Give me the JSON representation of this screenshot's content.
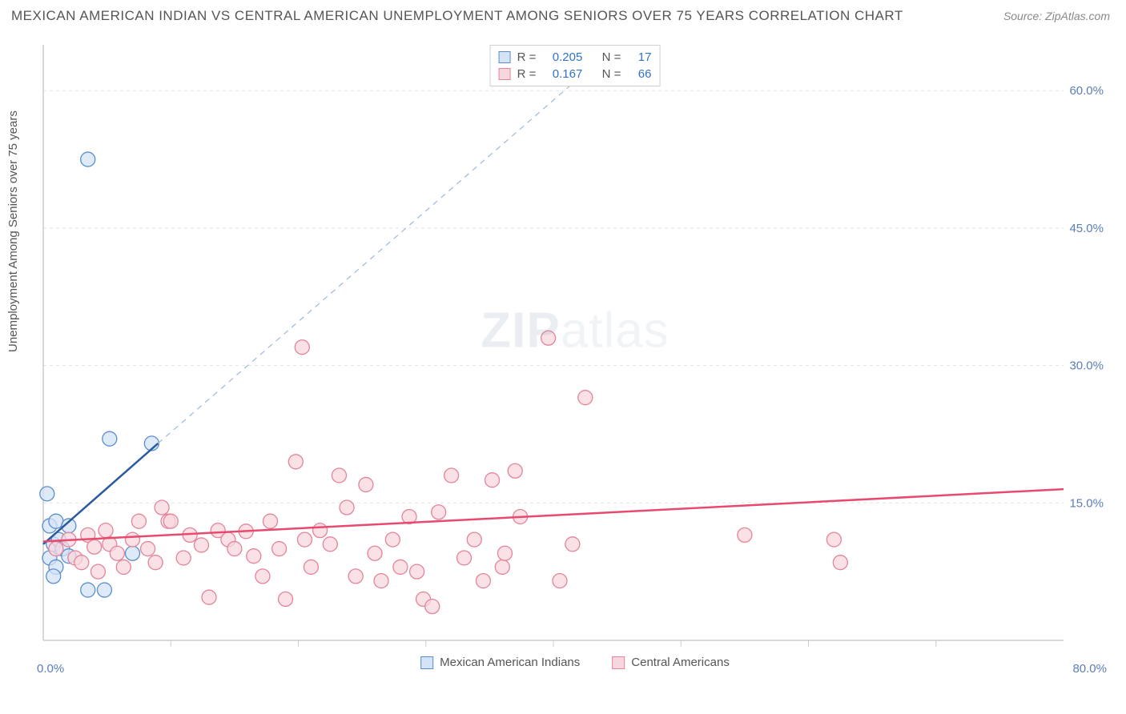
{
  "title": "MEXICAN AMERICAN INDIAN VS CENTRAL AMERICAN UNEMPLOYMENT AMONG SENIORS OVER 75 YEARS CORRELATION CHART",
  "source": "Source: ZipAtlas.com",
  "ylabel": "Unemployment Among Seniors over 75 years",
  "watermark_zip": "ZIP",
  "watermark_atlas": "atlas",
  "chart": {
    "type": "scatter",
    "background_color": "#ffffff",
    "grid_color": "#e5e5e5",
    "grid_dash": "4,4",
    "axis_color": "#cccccc",
    "xlim": [
      0,
      80
    ],
    "ylim": [
      0,
      65
    ],
    "x_origin_label": "0.0%",
    "x_max_label": "80.0%",
    "y_ticks": [
      15,
      30,
      45,
      60
    ],
    "y_tick_labels": [
      "15.0%",
      "30.0%",
      "45.0%",
      "60.0%"
    ],
    "x_minor_step": 10,
    "tick_label_color": "#5a7db8",
    "tick_label_fontsize": 15,
    "stats_box": {
      "border_color": "#d0d0d0",
      "label_color": "#555555",
      "value_color": "#3273c4",
      "rows": [
        {
          "swatch_fill": "#d4e3f6",
          "swatch_stroke": "#5a8dd0",
          "r": "0.205",
          "n": "17"
        },
        {
          "swatch_fill": "#f7d7de",
          "swatch_stroke": "#e3849a",
          "r": "0.167",
          "n": "66"
        }
      ]
    },
    "series": [
      {
        "name": "Mexican American Indians",
        "marker_fill": "#d4e3f6",
        "marker_stroke": "#5a8dd0",
        "marker_opacity": 0.75,
        "marker_radius": 9,
        "trend": {
          "x1": 0,
          "y1": 10.5,
          "x2": 9,
          "y2": 21.5,
          "stroke": "#2c5aa0",
          "width": 2.5,
          "style": "solid"
        },
        "trend_ext": {
          "x1": 9,
          "y1": 21.5,
          "x2": 45,
          "y2": 65,
          "stroke": "#9fb9db",
          "width": 1.2,
          "style": "dashed",
          "dash": "7,6"
        },
        "points": [
          [
            0.5,
            9
          ],
          [
            1,
            8
          ],
          [
            0.8,
            10.5
          ],
          [
            1.2,
            11
          ],
          [
            0.5,
            12.5
          ],
          [
            1.5,
            10
          ],
          [
            2,
            9.2
          ],
          [
            0.3,
            16
          ],
          [
            1,
            13
          ],
          [
            2,
            12.5
          ],
          [
            7,
            9.5
          ],
          [
            3.5,
            5.5
          ],
          [
            4.8,
            5.5
          ],
          [
            5.2,
            22
          ],
          [
            8.5,
            21.5
          ],
          [
            0.8,
            7
          ],
          [
            3.5,
            52.5
          ]
        ]
      },
      {
        "name": "Central Americans",
        "marker_fill": "#f7d7de",
        "marker_stroke": "#e3849a",
        "marker_opacity": 0.75,
        "marker_radius": 9,
        "trend": {
          "x1": 0,
          "y1": 10.8,
          "x2": 80,
          "y2": 16.5,
          "stroke": "#e84a6f",
          "width": 2.5,
          "style": "solid"
        },
        "points": [
          [
            1,
            10
          ],
          [
            2,
            11
          ],
          [
            2.5,
            9
          ],
          [
            3,
            8.5
          ],
          [
            3.5,
            11.5
          ],
          [
            4,
            10.2
          ],
          [
            4.3,
            7.5
          ],
          [
            4.9,
            12
          ],
          [
            5.2,
            10.5
          ],
          [
            5.8,
            9.5
          ],
          [
            6.3,
            8
          ],
          [
            7,
            11
          ],
          [
            7.5,
            13
          ],
          [
            8.2,
            10
          ],
          [
            8.8,
            8.5
          ],
          [
            9.3,
            14.5
          ],
          [
            9.8,
            13
          ],
          [
            10,
            13
          ],
          [
            11,
            9
          ],
          [
            11.5,
            11.5
          ],
          [
            12.4,
            10.4
          ],
          [
            13.7,
            12
          ],
          [
            14.5,
            11
          ],
          [
            15,
            10
          ],
          [
            15.9,
            11.9
          ],
          [
            16.5,
            9.2
          ],
          [
            17.2,
            7
          ],
          [
            17.8,
            13
          ],
          [
            18.5,
            10
          ],
          [
            19,
            4.5
          ],
          [
            19.8,
            19.5
          ],
          [
            20.3,
            32
          ],
          [
            20.5,
            11
          ],
          [
            21,
            8
          ],
          [
            21.7,
            12
          ],
          [
            22.5,
            10.5
          ],
          [
            23.2,
            18
          ],
          [
            23.8,
            14.5
          ],
          [
            24.5,
            7
          ],
          [
            25.3,
            17
          ],
          [
            26,
            9.5
          ],
          [
            26.5,
            6.5
          ],
          [
            27.4,
            11
          ],
          [
            28,
            8
          ],
          [
            28.7,
            13.5
          ],
          [
            29.3,
            7.5
          ],
          [
            29.8,
            4.5
          ],
          [
            30.5,
            3.7
          ],
          [
            31,
            14
          ],
          [
            32,
            18
          ],
          [
            33,
            9
          ],
          [
            33.8,
            11
          ],
          [
            34.5,
            6.5
          ],
          [
            35.2,
            17.5
          ],
          [
            36,
            8
          ],
          [
            36.2,
            9.5
          ],
          [
            37,
            18.5
          ],
          [
            37.4,
            13.5
          ],
          [
            39.6,
            33
          ],
          [
            40.5,
            6.5
          ],
          [
            41.5,
            10.5
          ],
          [
            42.5,
            26.5
          ],
          [
            62,
            11
          ],
          [
            62.5,
            8.5
          ],
          [
            55,
            11.5
          ],
          [
            13,
            4.7
          ]
        ]
      }
    ],
    "bottom_legend": [
      {
        "swatch_fill": "#d4e3f6",
        "swatch_stroke": "#5a8dd0",
        "label": "Mexican American Indians"
      },
      {
        "swatch_fill": "#f7d7de",
        "swatch_stroke": "#e3849a",
        "label": "Central Americans"
      }
    ]
  }
}
